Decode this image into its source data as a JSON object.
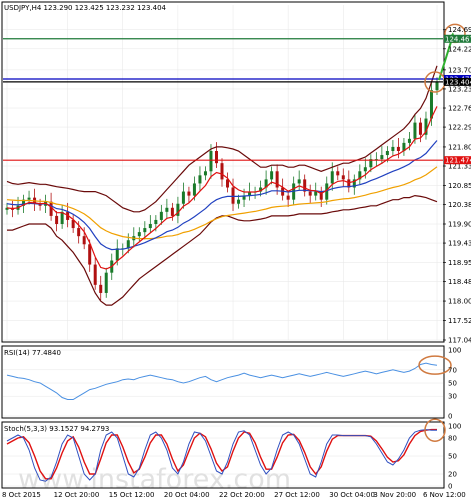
{
  "chart_data": [
    {
      "type": "candlestick",
      "title": "USDJPY,H4  123.290 123.425 123.232 123.404",
      "ylim": [
        117.04,
        125.3
      ],
      "y_ticks": [
        "124.690",
        "124.220",
        "123.700",
        "123.230",
        "122.760",
        "122.290",
        "121.800",
        "121.330",
        "120.850",
        "120.380",
        "119.900",
        "119.430",
        "118.950",
        "118.480",
        "118.000",
        "117.520",
        "117.040"
      ],
      "x_ticks": [
        "8 Oct 2015",
        "12 Oct 20:00",
        "15 Oct 12:00",
        "20 Oct 04:00",
        "22 Oct 20:00",
        "27 Oct 12:00",
        "30 Oct 04:00",
        "3 Nov 20:00",
        "6 Nov 12:00"
      ],
      "price_lines": [
        {
          "value": 124.467,
          "label": "124.467",
          "color": "#1f7a3a"
        },
        {
          "value": 123.475,
          "label": "123.475",
          "color": "#0000c0"
        },
        {
          "value": 123.404,
          "label": "123.404",
          "color": "#000000"
        },
        {
          "value": 121.474,
          "label": "121.474",
          "color": "#e01010"
        }
      ],
      "close": [
        120.3,
        120.25,
        120.35,
        120.5,
        120.55,
        120.4,
        120.35,
        120.45,
        120.1,
        119.9,
        120.2,
        120.0,
        119.8,
        119.6,
        119.4,
        118.9,
        118.4,
        118.2,
        118.7,
        119.0,
        119.3,
        119.3,
        119.5,
        119.6,
        119.7,
        119.8,
        119.9,
        120.0,
        120.2,
        120.3,
        120.1,
        120.4,
        120.7,
        120.6,
        120.9,
        121.1,
        121.2,
        121.7,
        121.4,
        121.0,
        120.8,
        120.4,
        120.5,
        120.6,
        120.7,
        120.7,
        120.8,
        121.0,
        121.2,
        120.8,
        120.6,
        120.5,
        120.9,
        121.0,
        120.7,
        120.6,
        120.7,
        120.5,
        120.9,
        121.2,
        121.1,
        121.0,
        120.8,
        121.0,
        121.2,
        121.3,
        121.5,
        121.5,
        121.6,
        121.7,
        121.8,
        121.7,
        121.9,
        122.0,
        122.4,
        122.1,
        122.5,
        123.2,
        123.4
      ],
      "ma_red": [
        120.3,
        120.28,
        120.3,
        120.37,
        120.43,
        120.42,
        120.4,
        120.41,
        120.32,
        120.18,
        120.18,
        120.12,
        120.01,
        119.87,
        119.71,
        119.44,
        119.09,
        118.83,
        118.79,
        118.85,
        118.99,
        119.1,
        119.23,
        119.35,
        119.46,
        119.57,
        119.68,
        119.79,
        119.92,
        120.04,
        120.07,
        120.18,
        120.34,
        120.42,
        120.56,
        120.71,
        120.85,
        121.07,
        121.17,
        121.13,
        121.03,
        120.84,
        120.74,
        120.69,
        120.69,
        120.69,
        120.72,
        120.81,
        120.93,
        120.89,
        120.81,
        120.71,
        120.77,
        120.84,
        120.79,
        120.73,
        120.72,
        120.65,
        120.73,
        120.88,
        120.95,
        120.97,
        120.92,
        120.95,
        121.03,
        121.11,
        121.24,
        121.32,
        121.4,
        121.49,
        121.58,
        121.62,
        121.71,
        121.8,
        121.99,
        122.02,
        122.18,
        122.52,
        122.8
      ],
      "ma_blue": [
        120.4,
        120.38,
        120.37,
        120.39,
        120.41,
        120.4,
        120.39,
        120.4,
        120.35,
        120.28,
        120.26,
        120.21,
        120.14,
        120.05,
        119.94,
        119.79,
        119.59,
        119.41,
        119.32,
        119.27,
        119.28,
        119.28,
        119.31,
        119.35,
        119.39,
        119.44,
        119.5,
        119.56,
        119.63,
        119.71,
        119.75,
        119.82,
        119.92,
        119.99,
        120.08,
        120.18,
        120.28,
        120.41,
        120.5,
        120.55,
        120.58,
        120.58,
        120.58,
        120.59,
        120.6,
        120.61,
        120.63,
        120.67,
        120.72,
        120.72,
        120.71,
        120.69,
        120.71,
        120.73,
        120.73,
        120.72,
        120.72,
        120.7,
        120.72,
        120.77,
        120.8,
        120.82,
        120.82,
        120.84,
        120.87,
        120.91,
        120.97,
        121.02,
        121.08,
        121.14,
        121.2,
        121.25,
        121.31,
        121.38,
        121.48,
        121.54,
        121.64,
        121.8,
        121.96
      ],
      "ma_orange": [
        120.5,
        120.49,
        120.48,
        120.48,
        120.48,
        120.47,
        120.46,
        120.46,
        120.43,
        120.39,
        120.37,
        120.33,
        120.28,
        120.22,
        120.15,
        120.05,
        119.93,
        119.81,
        119.73,
        119.67,
        119.63,
        119.59,
        119.57,
        119.55,
        119.54,
        119.54,
        119.54,
        119.55,
        119.57,
        119.6,
        119.61,
        119.64,
        119.69,
        119.72,
        119.77,
        119.83,
        119.89,
        119.97,
        120.03,
        120.08,
        120.11,
        120.13,
        120.15,
        120.17,
        120.19,
        120.21,
        120.24,
        120.27,
        120.31,
        120.33,
        120.34,
        120.35,
        120.37,
        120.39,
        120.4,
        120.41,
        120.42,
        120.43,
        120.45,
        120.48,
        120.5,
        120.52,
        120.53,
        120.55,
        120.58,
        120.61,
        120.65,
        120.68,
        120.72,
        120.76,
        120.8,
        120.83,
        120.87,
        120.92,
        120.99,
        121.04,
        121.11,
        121.21,
        121.31
      ],
      "bb_upper": [
        120.95,
        120.9,
        120.88,
        120.9,
        120.92,
        120.9,
        120.88,
        120.88,
        120.85,
        120.82,
        120.8,
        120.78,
        120.75,
        120.72,
        120.7,
        120.7,
        120.7,
        120.65,
        120.6,
        120.5,
        120.4,
        120.3,
        120.25,
        120.2,
        120.2,
        120.25,
        120.35,
        120.45,
        120.6,
        120.75,
        120.9,
        121.05,
        121.2,
        121.35,
        121.45,
        121.55,
        121.65,
        121.75,
        121.8,
        121.8,
        121.78,
        121.75,
        121.7,
        121.6,
        121.5,
        121.4,
        121.3,
        121.3,
        121.35,
        121.35,
        121.35,
        121.3,
        121.3,
        121.35,
        121.35,
        121.3,
        121.25,
        121.2,
        121.25,
        121.3,
        121.35,
        121.4,
        121.4,
        121.45,
        121.5,
        121.55,
        121.65,
        121.75,
        121.85,
        121.95,
        122.05,
        122.15,
        122.25,
        122.4,
        122.6,
        122.75,
        123.0,
        123.4,
        123.8
      ],
      "bb_lower": [
        119.75,
        119.75,
        119.8,
        119.85,
        119.9,
        119.9,
        119.9,
        119.9,
        119.8,
        119.6,
        119.5,
        119.35,
        119.2,
        119.0,
        118.8,
        118.5,
        118.2,
        118.0,
        117.9,
        117.9,
        118.0,
        118.1,
        118.25,
        118.4,
        118.55,
        118.65,
        118.75,
        118.85,
        118.95,
        119.05,
        119.15,
        119.25,
        119.35,
        119.45,
        119.55,
        119.65,
        119.8,
        119.95,
        120.05,
        120.1,
        120.1,
        120.05,
        120.0,
        119.98,
        119.98,
        120.0,
        120.02,
        120.05,
        120.1,
        120.1,
        120.1,
        120.1,
        120.12,
        120.15,
        120.15,
        120.15,
        120.15,
        120.15,
        120.17,
        120.2,
        120.22,
        120.25,
        120.25,
        120.27,
        120.3,
        120.32,
        120.35,
        120.35,
        120.4,
        120.45,
        120.5,
        120.5,
        120.55,
        120.55,
        120.6,
        120.58,
        120.55,
        120.5,
        120.45
      ],
      "projection": {
        "from": 123.45,
        "to": 124.55
      }
    },
    {
      "type": "line",
      "title": "RSI(14) 77.4840",
      "ylim": [
        0,
        100
      ],
      "y_ticks": [
        "100",
        "70",
        "50",
        "30",
        "0"
      ],
      "series": [
        {
          "values": [
            62,
            60,
            58,
            57,
            55,
            52,
            50,
            45,
            40,
            35,
            28,
            25,
            25,
            30,
            35,
            40,
            42,
            45,
            48,
            50,
            52,
            55,
            56,
            55,
            58,
            60,
            62,
            60,
            58,
            56,
            55,
            52,
            50,
            52,
            55,
            58,
            60,
            55,
            52,
            55,
            58,
            60,
            62,
            65,
            62,
            60,
            58,
            60,
            62,
            60,
            58,
            60,
            62,
            64,
            62,
            60,
            62,
            64,
            66,
            64,
            62,
            60,
            62,
            64,
            66,
            68,
            66,
            64,
            66,
            68,
            70,
            68,
            66,
            68,
            72,
            78,
            80,
            78,
            77
          ]
        }
      ]
    },
    {
      "type": "line",
      "title": "Stoch(5,3,3) 93.1527 94.2793",
      "ylim": [
        0,
        100
      ],
      "y_ticks": [
        "100",
        "80",
        "50",
        "20",
        "0"
      ],
      "series": [
        {
          "values": [
            75,
            80,
            85,
            80,
            60,
            30,
            10,
            8,
            15,
            40,
            70,
            85,
            80,
            50,
            20,
            10,
            20,
            60,
            85,
            90,
            80,
            50,
            20,
            15,
            30,
            60,
            85,
            90,
            80,
            60,
            30,
            20,
            40,
            70,
            90,
            88,
            75,
            50,
            25,
            20,
            40,
            70,
            90,
            92,
            85,
            60,
            35,
            20,
            30,
            60,
            85,
            90,
            85,
            70,
            45,
            20,
            15,
            40,
            70,
            85,
            85,
            84,
            84,
            84,
            84,
            84,
            82,
            70,
            55,
            40,
            35,
            45,
            60,
            80,
            90,
            93,
            94,
            93,
            93
          ]
        },
        {
          "values": [
            70,
            75,
            80,
            82,
            72,
            50,
            25,
            12,
            12,
            30,
            55,
            75,
            82,
            65,
            40,
            20,
            20,
            45,
            72,
            85,
            85,
            65,
            40,
            22,
            28,
            48,
            72,
            85,
            85,
            70,
            45,
            25,
            35,
            58,
            80,
            88,
            82,
            62,
            38,
            25,
            32,
            58,
            80,
            90,
            88,
            72,
            48,
            28,
            28,
            48,
            72,
            85,
            86,
            76,
            56,
            32,
            20,
            32,
            58,
            78,
            84,
            84,
            84,
            84,
            84,
            84,
            83,
            75,
            62,
            48,
            40,
            42,
            52,
            70,
            84,
            91,
            93,
            94,
            94
          ]
        }
      ]
    }
  ],
  "labels": {
    "header": "USDJPY,H4  123.290 123.425 123.232 123.404",
    "rsi": "RSI(14) 77.4840",
    "stoch": "Stoch(5,3,3) 93.1527 94.2793",
    "watermark": "www.instaforex.com"
  },
  "colors": {
    "frame": "#000000",
    "grid": "#e6e6e6",
    "candle_up": "#1a7a2a",
    "candle_down": "#b01010",
    "ma_red": "#e01010",
    "ma_blue": "#2040c0",
    "ma_orange": "#f0a000",
    "bollinger": "#6a0a0a",
    "rsi": "#4a90e2",
    "stoch_main": "#3050c0",
    "stoch_signal": "#e01010",
    "arrow": "#2fb02f",
    "circle": "#d07a40"
  }
}
